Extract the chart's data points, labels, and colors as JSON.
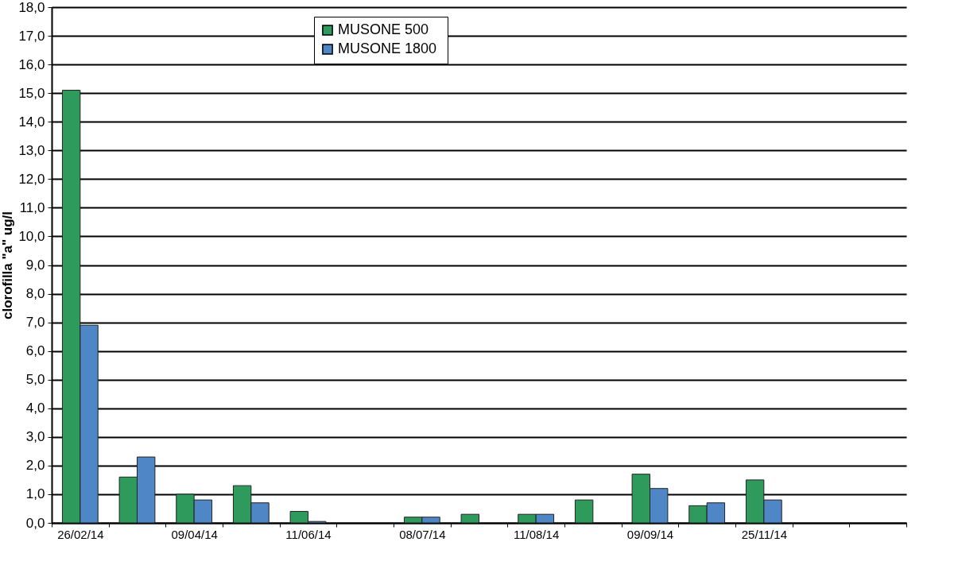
{
  "chart_data": {
    "type": "bar",
    "ylabel": "clorofilla \"a\" ug/l",
    "categories": [
      "26/02/14",
      null,
      "09/04/14",
      null,
      "11/06/14",
      null,
      "08/07/14",
      null,
      "11/08/14",
      null,
      "09/09/14",
      null,
      "25/11/14",
      null,
      null
    ],
    "series": [
      {
        "name": "MUSONE 500",
        "color": "#2e9a5c",
        "values": [
          15.1,
          1.6,
          1.0,
          1.3,
          0.4,
          null,
          0.2,
          0.3,
          0.3,
          0.8,
          1.7,
          0.6,
          1.5,
          null,
          null
        ]
      },
      {
        "name": "MUSONE  1800",
        "color": "#4f86c6",
        "values": [
          6.9,
          2.3,
          0.8,
          0.7,
          0.05,
          null,
          0.2,
          null,
          0.3,
          null,
          1.2,
          0.7,
          0.8,
          null,
          null
        ]
      }
    ],
    "ylim": [
      0,
      18
    ],
    "yticks": [
      {
        "value": 0,
        "label": "0,0"
      },
      {
        "value": 1,
        "label": "1,0"
      },
      {
        "value": 2,
        "label": "2,0"
      },
      {
        "value": 3,
        "label": "3,0"
      },
      {
        "value": 4,
        "label": "4,0"
      },
      {
        "value": 5,
        "label": "5,0"
      },
      {
        "value": 6,
        "label": "6,0"
      },
      {
        "value": 7,
        "label": "7,0"
      },
      {
        "value": 8,
        "label": "8,0"
      },
      {
        "value": 9,
        "label": "9,0"
      },
      {
        "value": 10,
        "label": "10,0"
      },
      {
        "value": 11,
        "label": "11,0"
      },
      {
        "value": 12,
        "label": "12,0"
      },
      {
        "value": 13,
        "label": "13,0"
      },
      {
        "value": 14,
        "label": "14,0"
      },
      {
        "value": 15,
        "label": "15,0"
      },
      {
        "value": 16,
        "label": "16,0"
      },
      {
        "value": 17,
        "label": "17,0"
      },
      {
        "value": 18,
        "label": "18,0"
      }
    ],
    "grid": "y",
    "legend": "top"
  }
}
